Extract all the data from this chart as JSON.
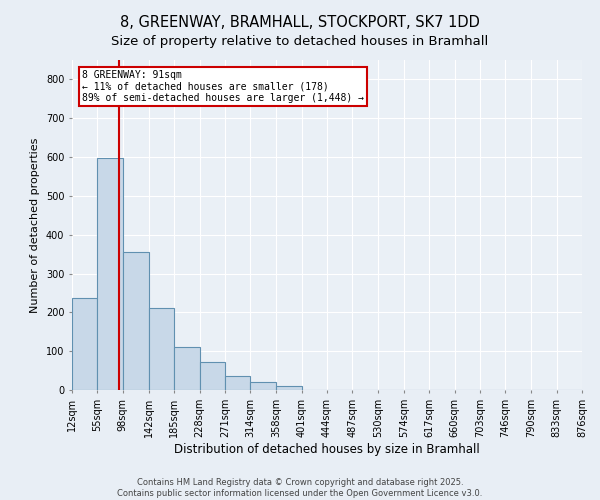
{
  "title_line1": "8, GREENWAY, BRAMHALL, STOCKPORT, SK7 1DD",
  "title_line2": "Size of property relative to detached houses in Bramhall",
  "xlabel": "Distribution of detached houses by size in Bramhall",
  "ylabel": "Number of detached properties",
  "bin_edges": [
    12,
    55,
    98,
    142,
    185,
    228,
    271,
    314,
    358,
    401,
    444,
    487,
    530,
    574,
    617,
    660,
    703,
    746,
    790,
    833,
    876
  ],
  "bar_heights": [
    237,
    597,
    355,
    210,
    110,
    72,
    35,
    20,
    10,
    0,
    0,
    0,
    0,
    0,
    0,
    0,
    0,
    0,
    0,
    0
  ],
  "bar_color": "#c8d8e8",
  "bar_edge_color": "#6090b0",
  "bar_linewidth": 0.8,
  "property_size": 91,
  "vline_color": "#cc0000",
  "vline_linewidth": 1.5,
  "annotation_text": "8 GREENWAY: 91sqm\n← 11% of detached houses are smaller (178)\n89% of semi-detached houses are larger (1,448) →",
  "annotation_box_color": "#ffffff",
  "annotation_box_edgecolor": "#cc0000",
  "annotation_fontsize": 7,
  "yticks": [
    0,
    100,
    200,
    300,
    400,
    500,
    600,
    700,
    800
  ],
  "ylim": [
    0,
    850
  ],
  "xlim": [
    12,
    876
  ],
  "background_color": "#e8eef5",
  "plot_bg_color": "#eaf0f6",
  "grid_color": "#ffffff",
  "footer_line1": "Contains HM Land Registry data © Crown copyright and database right 2025.",
  "footer_line2": "Contains public sector information licensed under the Open Government Licence v3.0.",
  "footer_fontsize": 6,
  "title_fontsize": 10.5,
  "subtitle_fontsize": 9.5,
  "xlabel_fontsize": 8.5,
  "ylabel_fontsize": 8,
  "tick_fontsize": 7
}
